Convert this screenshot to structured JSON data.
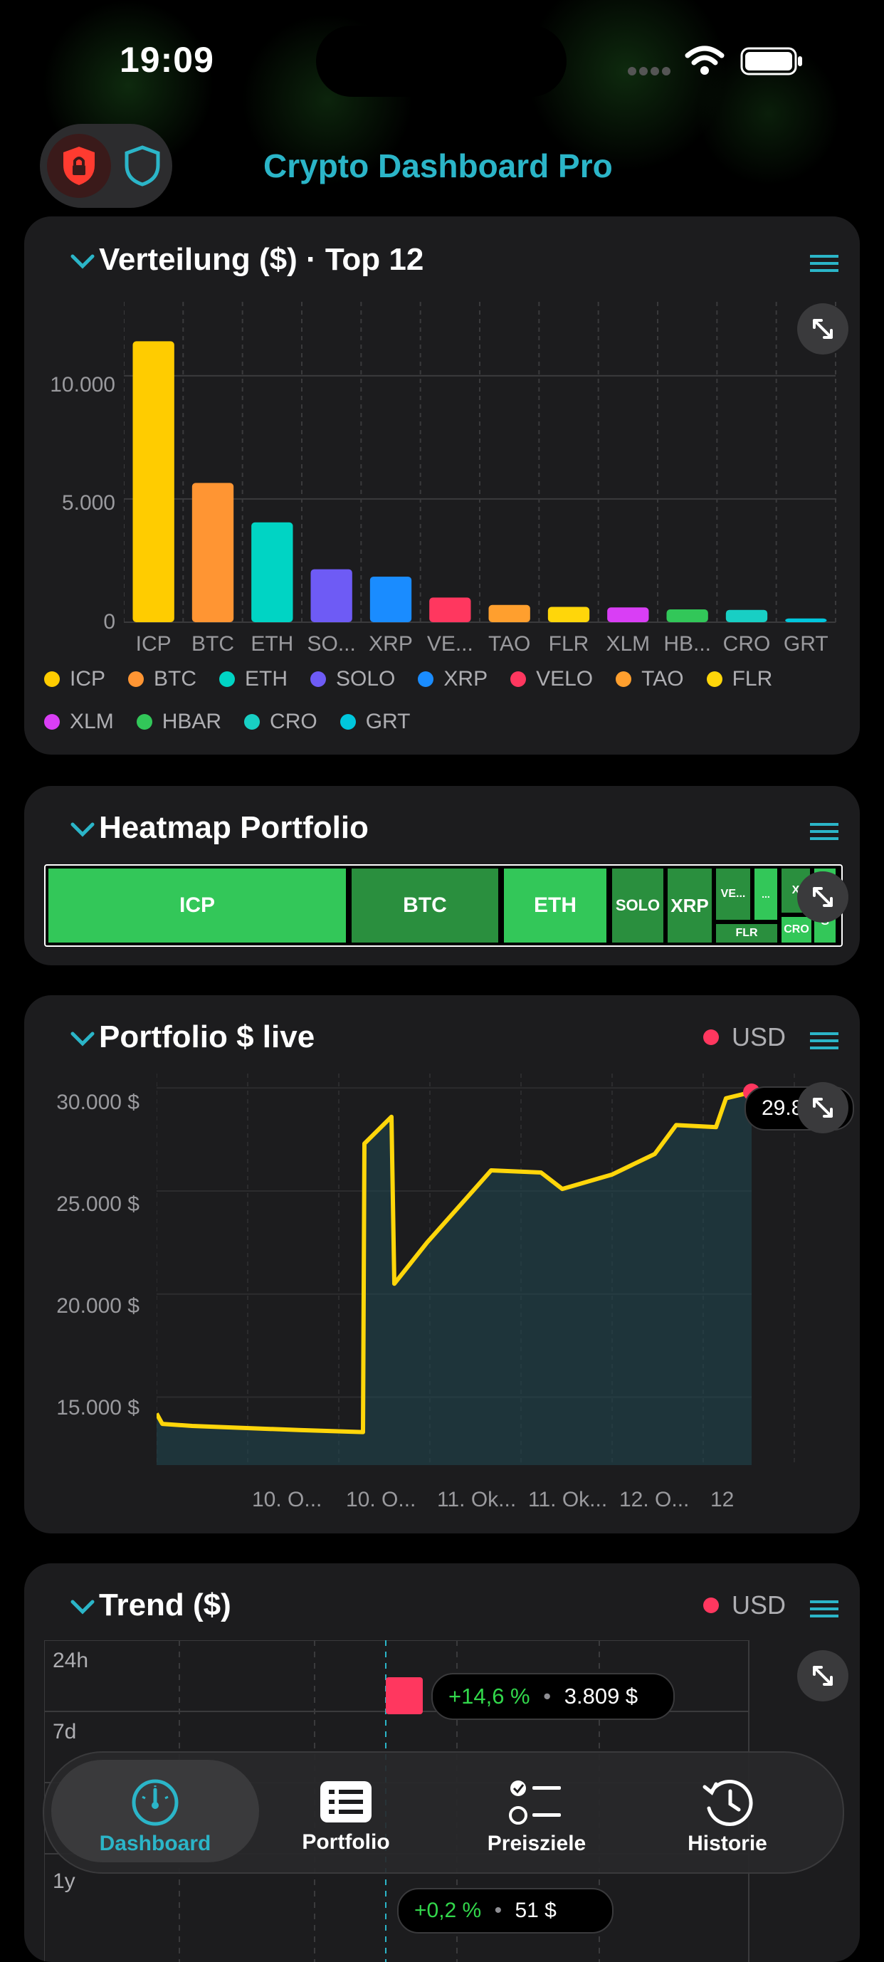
{
  "status_bar": {
    "time": "19:09"
  },
  "header": {
    "title": "Crypto Dashboard Pro"
  },
  "distribution": {
    "title": "Verteilung ($) · Top 12",
    "chart_data": {
      "type": "bar",
      "categories": [
        "ICP",
        "BTC",
        "ETH",
        "SO...",
        "XRP",
        "VE...",
        "TAO",
        "FLR",
        "XLM",
        "HB...",
        "CRO",
        "GRT"
      ],
      "values": [
        11400,
        5650,
        4050,
        2150,
        1850,
        1000,
        700,
        620,
        600,
        520,
        500,
        150
      ],
      "colors": [
        "#ffcc00",
        "#ff9533",
        "#00d4c4",
        "#6e5bf5",
        "#1a8cff",
        "#ff375f",
        "#ff9f2e",
        "#ffd60a",
        "#d93ef5",
        "#32c759",
        "#18cfc4",
        "#00c7dd"
      ],
      "yticks": [
        "10.000",
        "5.000",
        "0"
      ],
      "ylim": [
        0,
        13000
      ],
      "legend": [
        "ICP",
        "BTC",
        "ETH",
        "SOLO",
        "XRP",
        "VELO",
        "TAO",
        "FLR",
        "XLM",
        "HBAR",
        "CRO",
        "GRT"
      ]
    }
  },
  "heatmap": {
    "title": "Heatmap Portfolio",
    "cells": [
      {
        "label": "ICP",
        "shade": "#33c759"
      },
      {
        "label": "BTC",
        "shade": "#2a8f3e"
      },
      {
        "label": "ETH",
        "shade": "#33c759"
      },
      {
        "label": "SOLO",
        "shade": "#2a8f3e"
      },
      {
        "label": "XRP",
        "shade": "#2a8f3e"
      },
      {
        "label": "VE...",
        "shade": "#2a8f3e"
      },
      {
        "label": "...",
        "shade": "#33c759"
      },
      {
        "label": "X",
        "shade": "#2a8f3e"
      },
      {
        "label": "FLR",
        "shade": "#2a8f3e"
      },
      {
        "label": "CRO",
        "shade": "#33c759"
      },
      {
        "label": "G",
        "shade": "#33c759"
      }
    ]
  },
  "portfolio": {
    "title": "Portfolio $ live",
    "currency": "USD",
    "live_value": "29.8",
    "chart_data": {
      "type": "area",
      "yticks": [
        "30.000 $",
        "25.000 $",
        "20.000 $",
        "15.000 $"
      ],
      "ylim": [
        11700,
        30700
      ],
      "xticks": [
        "10. O...",
        "10. O...",
        "11. Ok...",
        "11. Ok...",
        "12. O...",
        "12"
      ],
      "values": [
        14200,
        13700,
        13600,
        13400,
        13300,
        27300,
        28600,
        20500,
        22500,
        26000,
        25900,
        25100,
        25800,
        26800,
        28200,
        28100,
        29500,
        29800
      ]
    }
  },
  "trend": {
    "title": "Trend ($)",
    "currency": "USD",
    "rows": [
      {
        "label": "24h",
        "change": "+14,6 %",
        "amount": "3.809 $"
      },
      {
        "label": "7d",
        "change": "",
        "amount": ""
      },
      {
        "label": "1y",
        "change": "+0,2 %",
        "amount": "51 $"
      }
    ]
  },
  "tabbar": {
    "tabs": [
      {
        "label": "Dashboard",
        "icon": "gauge-icon",
        "active": true
      },
      {
        "label": "Portfolio",
        "icon": "list-icon",
        "active": false
      },
      {
        "label": "Preisziele",
        "icon": "checklist-icon",
        "active": false
      },
      {
        "label": "Historie",
        "icon": "history-icon",
        "active": false
      }
    ]
  },
  "colors": {
    "accent": "#2bb5c8",
    "lock": "#ff3b30",
    "card": "#1c1c1e",
    "line": "#ffd60a",
    "live_dot": "#ff375f"
  }
}
